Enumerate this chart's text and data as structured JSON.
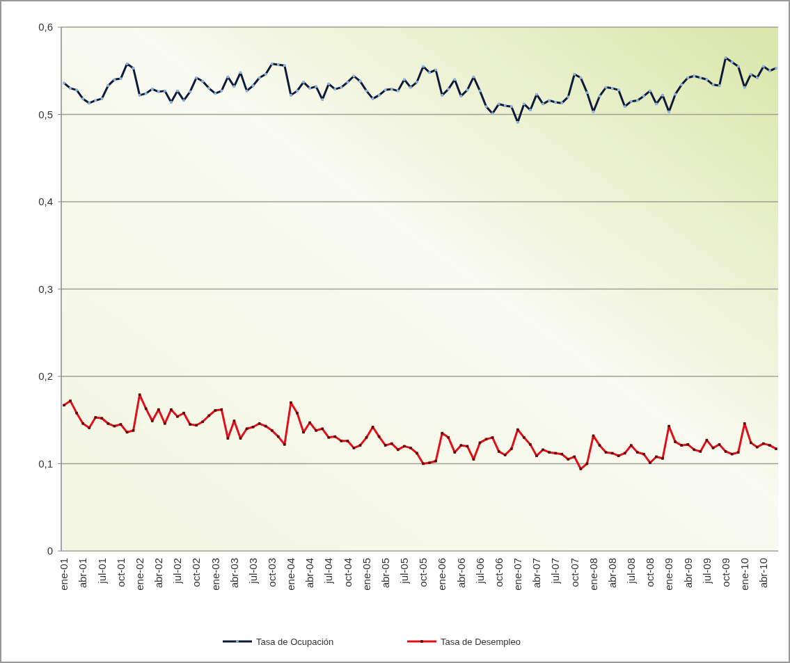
{
  "chart_data": {
    "type": "line",
    "categories": [
      "ene-01",
      null,
      null,
      "abr-01",
      null,
      null,
      "jul-01",
      null,
      null,
      "oct-01",
      null,
      null,
      "ene-02",
      null,
      null,
      "abr-02",
      null,
      null,
      "jul-02",
      null,
      null,
      "oct-02",
      null,
      null,
      "ene-03",
      null,
      null,
      "abr-03",
      null,
      null,
      "jul-03",
      null,
      null,
      "oct-03",
      null,
      null,
      "ene-04",
      null,
      null,
      "abr-04",
      null,
      null,
      "jul-04",
      null,
      null,
      "oct-04",
      null,
      null,
      "ene-05",
      null,
      null,
      "abr-05",
      null,
      null,
      "jul-05",
      null,
      null,
      "oct-05",
      null,
      null,
      "ene-06",
      null,
      null,
      "abr-06",
      null,
      null,
      "jul-06",
      null,
      null,
      "oct-06",
      null,
      null,
      "ene-07",
      null,
      null,
      "abr-07",
      null,
      null,
      "jul-07",
      null,
      null,
      "oct-07",
      null,
      null,
      "ene-08",
      null,
      null,
      "abr-08",
      null,
      null,
      "jul-08",
      null,
      null,
      "oct-08",
      null,
      null,
      "ene-09",
      null,
      null,
      "abr-09",
      null,
      null,
      "jul-09",
      null,
      null,
      "oct-09",
      null,
      null,
      "ene-10",
      null,
      null,
      "abr-10",
      null,
      null
    ],
    "series": [
      {
        "name": "Tasa de Ocupación",
        "color": "#0d1a3a",
        "values": [
          0.536,
          0.53,
          0.528,
          0.518,
          0.513,
          0.516,
          0.518,
          0.533,
          0.54,
          0.541,
          0.558,
          0.553,
          0.522,
          0.524,
          0.529,
          0.526,
          0.527,
          0.514,
          0.527,
          0.516,
          0.526,
          0.542,
          0.538,
          0.53,
          0.524,
          0.527,
          0.543,
          0.532,
          0.548,
          0.527,
          0.533,
          0.542,
          0.546,
          0.558,
          0.557,
          0.556,
          0.522,
          0.527,
          0.537,
          0.53,
          0.532,
          0.517,
          0.535,
          0.529,
          0.531,
          0.537,
          0.544,
          0.538,
          0.527,
          0.518,
          0.522,
          0.528,
          0.529,
          0.527,
          0.54,
          0.531,
          0.537,
          0.555,
          0.548,
          0.551,
          0.522,
          0.529,
          0.54,
          0.521,
          0.528,
          0.543,
          0.527,
          0.509,
          0.501,
          0.512,
          0.51,
          0.509,
          0.491,
          0.512,
          0.505,
          0.523,
          0.512,
          0.516,
          0.514,
          0.513,
          0.52,
          0.546,
          0.542,
          0.525,
          0.503,
          0.521,
          0.531,
          0.53,
          0.528,
          0.509,
          0.515,
          0.516,
          0.521,
          0.527,
          0.512,
          0.522,
          0.503,
          0.523,
          0.534,
          0.542,
          0.544,
          0.542,
          0.54,
          0.534,
          0.533,
          0.565,
          0.56,
          0.555,
          0.531,
          0.546,
          0.542,
          0.555,
          0.55,
          0.553
        ]
      },
      {
        "name": "Tasa de Desempleo",
        "color": "#e0101a",
        "values": [
          0.167,
          0.172,
          0.158,
          0.146,
          0.141,
          0.153,
          0.152,
          0.146,
          0.143,
          0.145,
          0.136,
          0.138,
          0.179,
          0.163,
          0.149,
          0.162,
          0.146,
          0.162,
          0.154,
          0.158,
          0.145,
          0.144,
          0.148,
          0.155,
          0.161,
          0.162,
          0.129,
          0.149,
          0.129,
          0.14,
          0.142,
          0.146,
          0.143,
          0.138,
          0.131,
          0.122,
          0.17,
          0.158,
          0.136,
          0.147,
          0.138,
          0.14,
          0.13,
          0.131,
          0.126,
          0.126,
          0.118,
          0.121,
          0.13,
          0.142,
          0.131,
          0.121,
          0.123,
          0.116,
          0.12,
          0.118,
          0.112,
          0.1,
          0.101,
          0.103,
          0.135,
          0.13,
          0.113,
          0.121,
          0.12,
          0.105,
          0.124,
          0.128,
          0.13,
          0.114,
          0.11,
          0.117,
          0.139,
          0.13,
          0.122,
          0.109,
          0.116,
          0.113,
          0.112,
          0.111,
          0.105,
          0.108,
          0.094,
          0.1,
          0.132,
          0.121,
          0.113,
          0.112,
          0.109,
          0.112,
          0.121,
          0.113,
          0.111,
          0.101,
          0.108,
          0.106,
          0.143,
          0.125,
          0.121,
          0.122,
          0.116,
          0.114,
          0.127,
          0.118,
          0.122,
          0.114,
          0.111,
          0.113,
          0.146,
          0.124,
          0.119,
          0.123,
          0.121,
          0.117
        ]
      }
    ],
    "ylim": [
      0,
      0.6
    ],
    "yticks": [
      {
        "value": 0,
        "label": "0"
      },
      {
        "value": 0.1,
        "label": "0,1"
      },
      {
        "value": 0.2,
        "label": "0,2"
      },
      {
        "value": 0.3,
        "label": "0,3"
      },
      {
        "value": 0.4,
        "label": "0,4"
      },
      {
        "value": 0.5,
        "label": "0,5"
      },
      {
        "value": 0.6,
        "label": "0,6"
      }
    ],
    "grid": "y",
    "legend": "bottom",
    "marker": "square",
    "line_style": "solid"
  }
}
